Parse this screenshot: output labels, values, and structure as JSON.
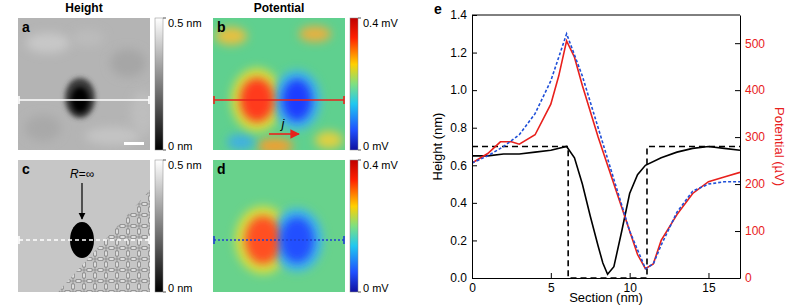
{
  "chart_data": [
    {
      "type": "image",
      "label": "a",
      "title": "Height",
      "colorbar": {
        "range": [
          0,
          0.5
        ],
        "ticks": [
          {
            "value": 0.5,
            "label": "0.5 nm"
          },
          {
            "value": 0,
            "label": "0 nm"
          }
        ]
      }
    },
    {
      "type": "image",
      "label": "b",
      "title": "Potential",
      "annotations": [
        "j"
      ],
      "colorbar": {
        "range": [
          0,
          0.4
        ],
        "ticks": [
          {
            "value": 0.4,
            "label": "0.4 mV"
          },
          {
            "value": 0,
            "label": "0 mV"
          }
        ]
      }
    },
    {
      "type": "image",
      "label": "c",
      "annotations": [
        "R=∞"
      ],
      "colorbar": {
        "range": [
          0,
          0.5
        ],
        "ticks": [
          {
            "value": 0.5,
            "label": "0.5 nm"
          },
          {
            "value": 0,
            "label": "0 nm"
          }
        ]
      }
    },
    {
      "type": "image",
      "label": "d",
      "colorbar": {
        "range": [
          0,
          0.4
        ],
        "ticks": [
          {
            "value": 0.4,
            "label": "0.4 mV"
          },
          {
            "value": 0,
            "label": "0 mV"
          }
        ]
      }
    },
    {
      "type": "line",
      "label": "e",
      "x_label": "Section (nm)",
      "y_label": "Height (nm)",
      "y2_label": "Potential (µV)",
      "xlim": [
        0,
        17
      ],
      "xticks": [
        0,
        5,
        10,
        15
      ],
      "ylim": [
        0,
        1.4
      ],
      "yticks": [
        {
          "value": 0,
          "label": "0.0"
        },
        0.2,
        0.4,
        0.6,
        0.8,
        {
          "value": 1,
          "label": "1.0"
        },
        1.2,
        1.4
      ],
      "y2lim": [
        0,
        560
      ],
      "y2ticks": [
        0,
        100,
        200,
        300,
        400,
        500
      ],
      "series": [
        {
          "color": "#000000",
          "line_style": "solid",
          "x": [
            0,
            1,
            2,
            3,
            4,
            5,
            6,
            6.5,
            7,
            7.5,
            8,
            8.3,
            8.6,
            9,
            9.5,
            10,
            10.5,
            11,
            12,
            13,
            14,
            15,
            16,
            17
          ],
          "values": [
            0.65,
            0.65,
            0.66,
            0.66,
            0.67,
            0.68,
            0.7,
            0.64,
            0.5,
            0.33,
            0.17,
            0.08,
            0.02,
            0.06,
            0.25,
            0.45,
            0.55,
            0.6,
            0.64,
            0.67,
            0.69,
            0.7,
            0.69,
            0.68
          ]
        },
        {
          "color": "#000000",
          "line_style": "dashed",
          "x": [
            0,
            6.1,
            6.1,
            11.1,
            11.1,
            17
          ],
          "values": [
            0.7,
            0.7,
            0,
            0,
            0.7,
            0.7
          ]
        },
        {
          "color": "#e8201c",
          "line_style": "solid",
          "axis": "y2",
          "x": [
            0,
            1,
            1.8,
            2.5,
            3,
            4,
            5,
            5.5,
            6,
            6.5,
            7,
            8,
            9,
            10,
            10.5,
            11,
            11.5,
            12,
            13,
            14,
            15,
            16,
            17
          ],
          "values": [
            245,
            265,
            290,
            290,
            285,
            305,
            370,
            430,
            505,
            470,
            410,
            300,
            200,
            100,
            50,
            20,
            30,
            80,
            135,
            180,
            205,
            215,
            225
          ]
        },
        {
          "color": "#1f4fd8",
          "line_style": "dotted",
          "axis": "y2",
          "x": [
            0,
            1,
            2,
            3,
            4,
            5,
            6,
            7,
            8,
            9,
            10,
            11,
            11.5,
            12,
            13,
            14,
            15,
            16,
            17
          ],
          "values": [
            245,
            260,
            280,
            305,
            350,
            420,
            520,
            430,
            320,
            210,
            100,
            20,
            30,
            70,
            140,
            185,
            200,
            205,
            205
          ]
        }
      ]
    }
  ]
}
